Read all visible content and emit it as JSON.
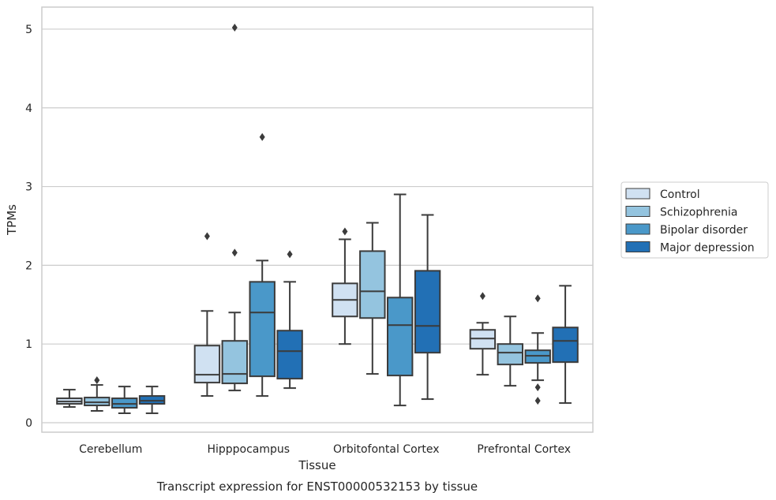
{
  "chart_data": {
    "type": "boxplot",
    "title": "",
    "caption": "Transcript expression for ENST00000532153 by tissue",
    "xlabel": "Tissue",
    "ylabel": "TPMs",
    "ylim": [
      -0.12,
      5.28
    ],
    "yticks": [
      0,
      1,
      2,
      3,
      4,
      5
    ],
    "grid": "horizontal",
    "legend_position": "right",
    "categories": [
      "Cerebellum",
      "Hipppocampus",
      "Orbitofontal Cortex",
      "Prefrontal Cortex"
    ],
    "series": [
      {
        "name": "Control",
        "color": "#d0e1f2",
        "boxes": [
          {
            "whislo": 0.2,
            "q1": 0.24,
            "med": 0.27,
            "q3": 0.31,
            "whishi": 0.42,
            "fliers": []
          },
          {
            "whislo": 0.34,
            "q1": 0.51,
            "med": 0.61,
            "q3": 0.98,
            "whishi": 1.42,
            "fliers": [
              2.37
            ]
          },
          {
            "whislo": 1.0,
            "q1": 1.35,
            "med": 1.56,
            "q3": 1.77,
            "whishi": 2.33,
            "fliers": [
              2.43
            ]
          },
          {
            "whislo": 0.61,
            "q1": 0.94,
            "med": 1.07,
            "q3": 1.18,
            "whishi": 1.27,
            "fliers": [
              1.61
            ]
          }
        ]
      },
      {
        "name": "Schizophrenia",
        "color": "#94c4df",
        "boxes": [
          {
            "whislo": 0.15,
            "q1": 0.22,
            "med": 0.26,
            "q3": 0.32,
            "whishi": 0.48,
            "fliers": [
              0.54
            ]
          },
          {
            "whislo": 0.41,
            "q1": 0.5,
            "med": 0.62,
            "q3": 1.04,
            "whishi": 1.4,
            "fliers": [
              5.02,
              2.16
            ]
          },
          {
            "whislo": 0.62,
            "q1": 1.33,
            "med": 1.67,
            "q3": 2.18,
            "whishi": 2.54,
            "fliers": []
          },
          {
            "whislo": 0.47,
            "q1": 0.74,
            "med": 0.89,
            "q3": 1.0,
            "whishi": 1.35,
            "fliers": []
          }
        ]
      },
      {
        "name": "Bipolar disorder",
        "color": "#4a98c9",
        "boxes": [
          {
            "whislo": 0.12,
            "q1": 0.19,
            "med": 0.24,
            "q3": 0.31,
            "whishi": 0.46,
            "fliers": []
          },
          {
            "whislo": 0.34,
            "q1": 0.59,
            "med": 1.4,
            "q3": 1.79,
            "whishi": 2.06,
            "fliers": [
              3.63
            ]
          },
          {
            "whislo": 0.22,
            "q1": 0.6,
            "med": 1.24,
            "q3": 1.59,
            "whishi": 2.9,
            "fliers": []
          },
          {
            "whislo": 0.54,
            "q1": 0.76,
            "med": 0.85,
            "q3": 0.92,
            "whishi": 1.14,
            "fliers": [
              1.58,
              0.45,
              0.28
            ]
          }
        ]
      },
      {
        "name": "Major depression",
        "color": "#2270b5",
        "boxes": [
          {
            "whislo": 0.12,
            "q1": 0.24,
            "med": 0.28,
            "q3": 0.34,
            "whishi": 0.46,
            "fliers": []
          },
          {
            "whislo": 0.44,
            "q1": 0.56,
            "med": 0.91,
            "q3": 1.17,
            "whishi": 1.79,
            "fliers": [
              2.14
            ]
          },
          {
            "whislo": 0.3,
            "q1": 0.89,
            "med": 1.23,
            "q3": 1.93,
            "whishi": 2.64,
            "fliers": []
          },
          {
            "whislo": 0.25,
            "q1": 0.77,
            "med": 1.04,
            "q3": 1.21,
            "whishi": 1.74,
            "fliers": []
          }
        ]
      }
    ]
  }
}
